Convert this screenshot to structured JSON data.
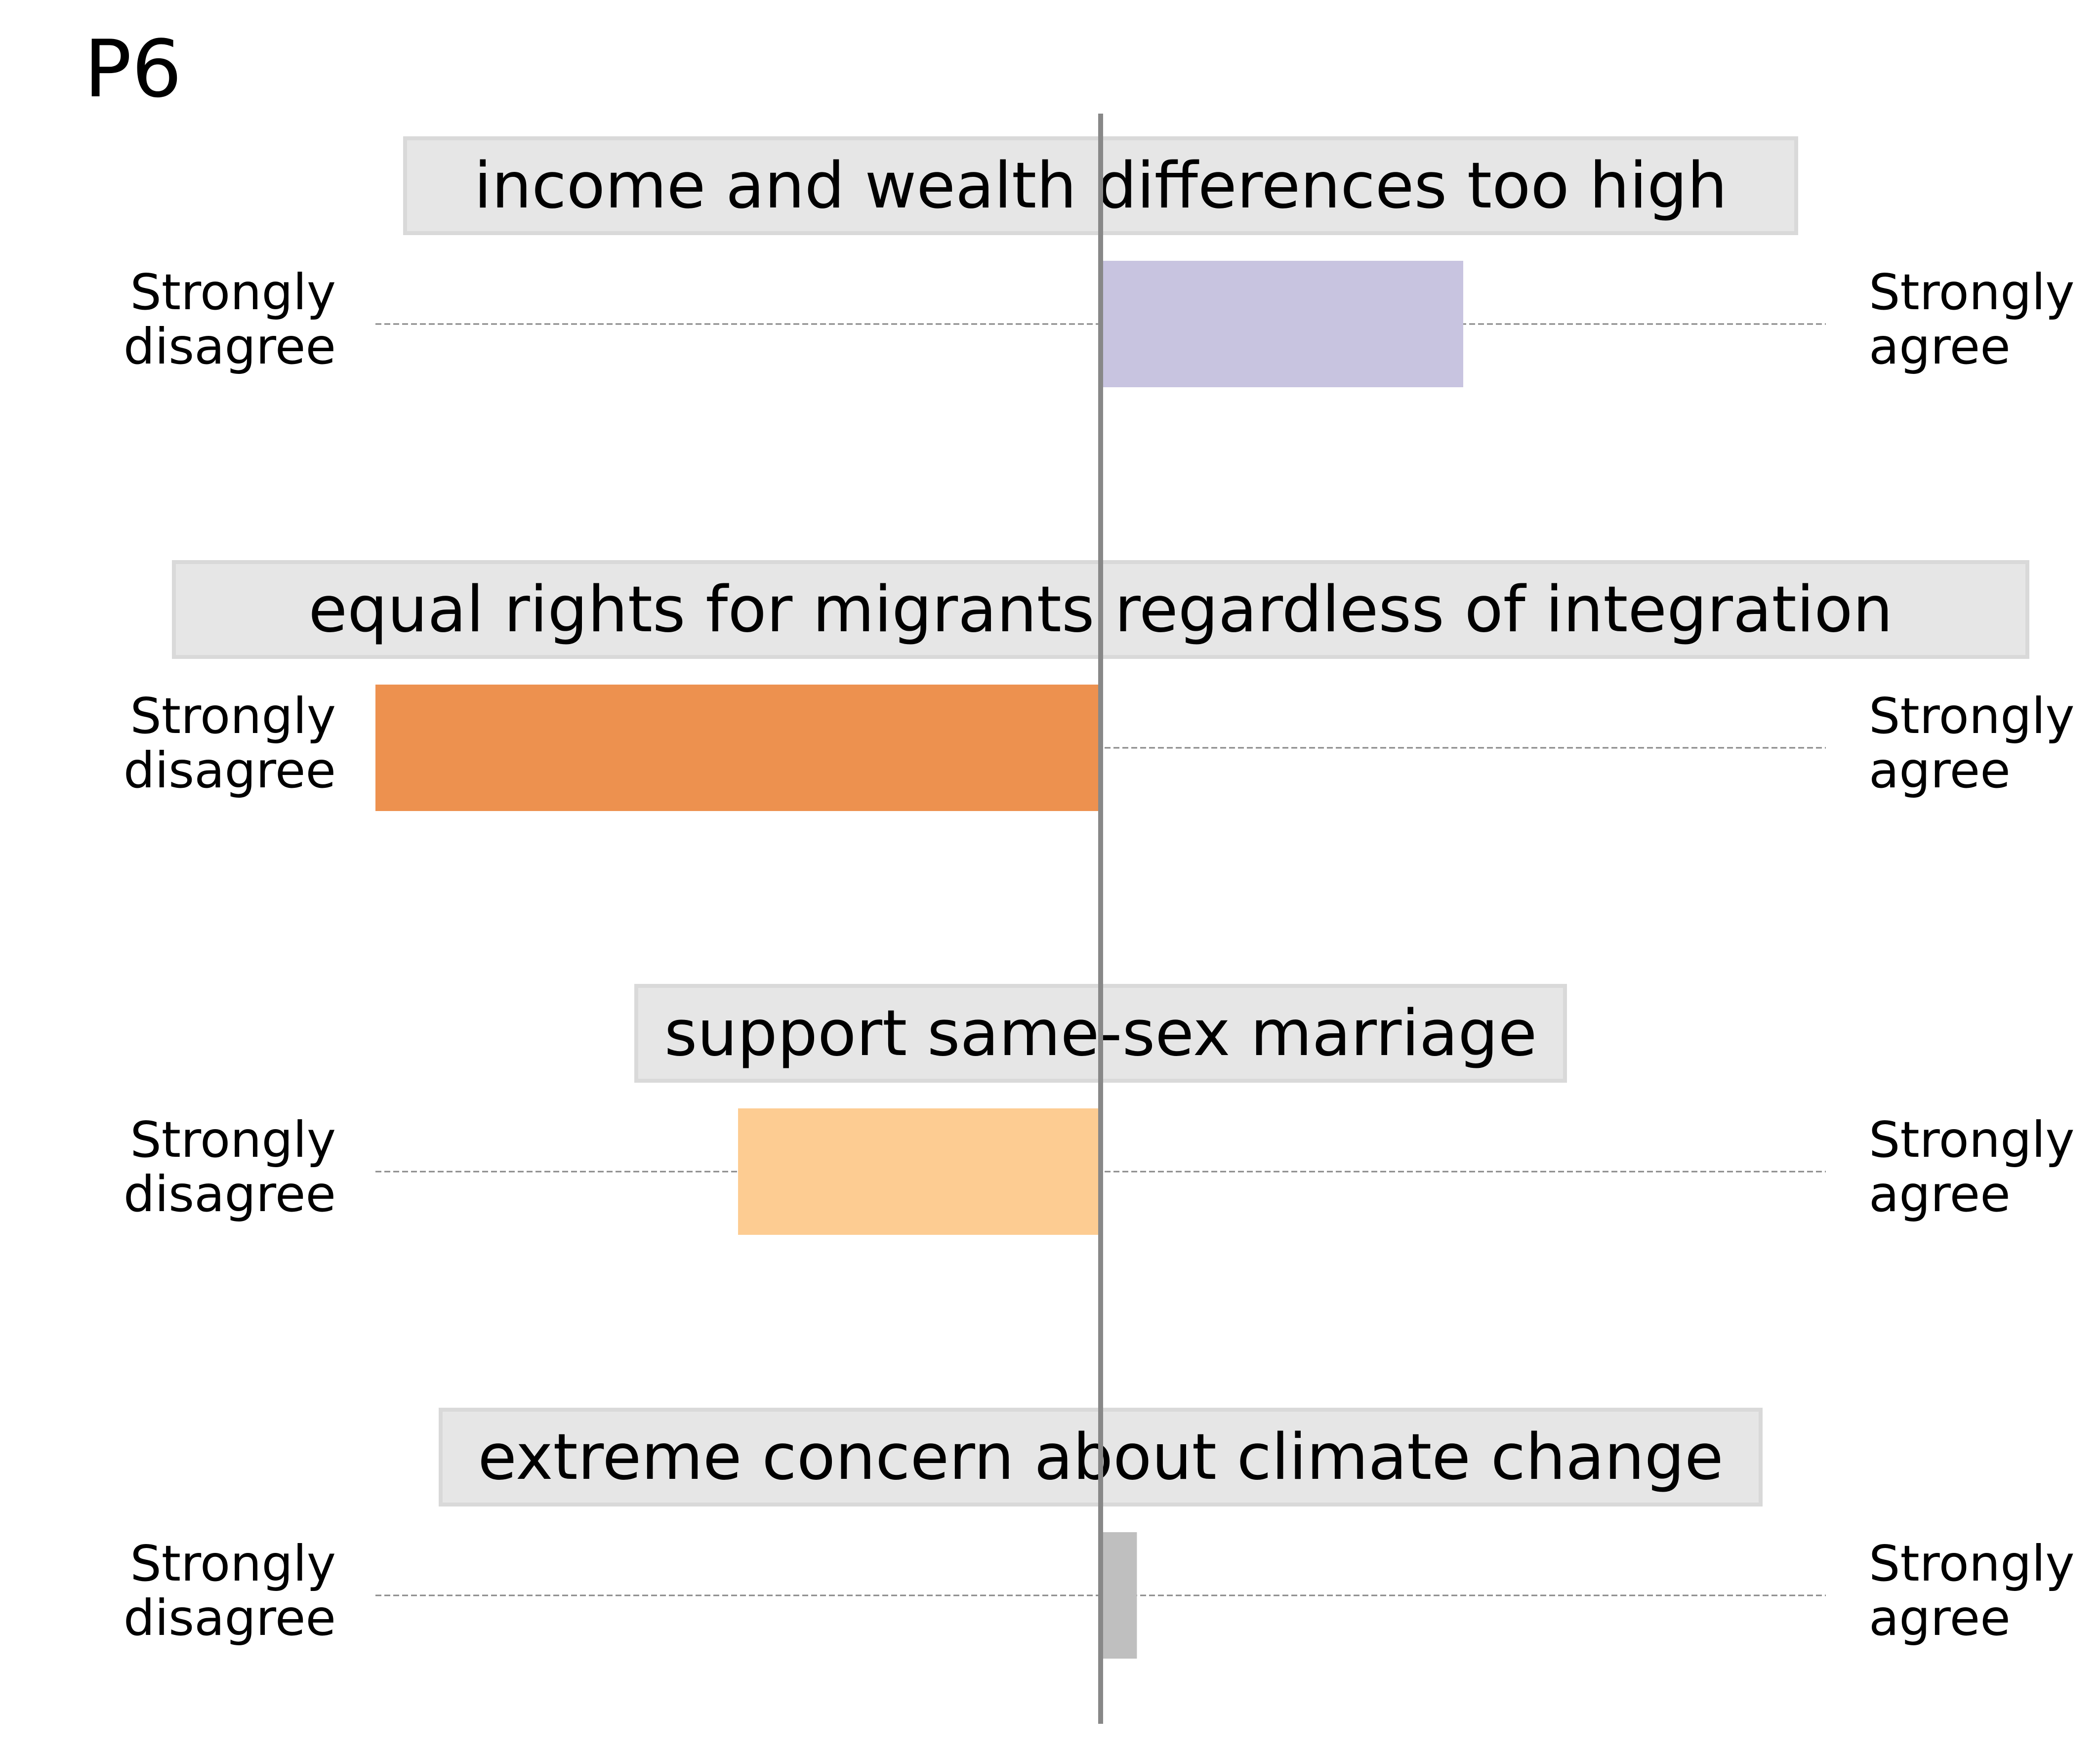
{
  "panel_label": "P6",
  "colors": {
    "center_axis": "#888888",
    "guide_line": "#888888",
    "label_box_fill": "#e6e6e6",
    "label_box_stroke": "#d9d9d9"
  },
  "chart_data": {
    "type": "bar",
    "orientation": "horizontal",
    "title": "P6",
    "xlim": [
      -1,
      1
    ],
    "center": 0,
    "left_end_label": [
      "Strongly",
      "disagree"
    ],
    "right_end_label": [
      "Strongly",
      "agree"
    ],
    "items": [
      {
        "statement": "income and wealth differences too high",
        "value": 0.5,
        "color": "#c8c4e0"
      },
      {
        "statement": "equal rights for migrants regardless of integration",
        "value": -1.0,
        "color": "#ed914f"
      },
      {
        "statement": "support same-sex marriage",
        "value": -0.5,
        "color": "#fdcc92"
      },
      {
        "statement": "extreme concern about climate change",
        "value": 0.05,
        "color": "#bfbfbf"
      }
    ]
  }
}
